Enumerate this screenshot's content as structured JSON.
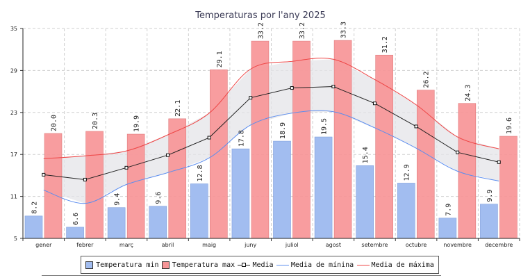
{
  "chart_data": {
    "type": "bar",
    "title": "Temperaturas por l'any 2025",
    "categories": [
      "gener",
      "febrer",
      "març",
      "abril",
      "maig",
      "juny",
      "juliol",
      "agost",
      "setembre",
      "octubre",
      "novembre",
      "decembre"
    ],
    "series": [
      {
        "name": "Temperatura min",
        "kind": "bar",
        "color": "#a2bdf0",
        "values": [
          8.2,
          6.6,
          9.4,
          9.6,
          12.8,
          17.8,
          18.9,
          19.5,
          15.4,
          12.9,
          7.9,
          9.9
        ]
      },
      {
        "name": "Temperatura max",
        "kind": "bar",
        "color": "#f79597",
        "values": [
          20.0,
          20.3,
          19.9,
          22.1,
          29.1,
          33.2,
          33.2,
          33.3,
          31.2,
          26.2,
          24.3,
          19.6
        ]
      },
      {
        "name": "Media",
        "kind": "line",
        "color": "#222222",
        "values": [
          14.1,
          13.4,
          15.1,
          16.9,
          19.4,
          25.1,
          26.5,
          26.7,
          24.3,
          21.0,
          17.3,
          15.9
        ]
      },
      {
        "name": "Media de mínina",
        "kind": "line",
        "color": "#5b8def",
        "values": [
          11.9,
          10.0,
          12.7,
          14.4,
          16.5,
          21.2,
          22.9,
          23.1,
          20.8,
          17.9,
          14.6,
          13.2
        ]
      },
      {
        "name": "Media de máxima",
        "kind": "line",
        "color": "#ee4444",
        "values": [
          16.4,
          16.8,
          17.5,
          19.8,
          22.9,
          29.2,
          30.3,
          30.6,
          27.7,
          24.1,
          19.5,
          17.8
        ]
      }
    ],
    "yticks": [
      "5",
      "11",
      "17",
      "23",
      "29",
      "35"
    ],
    "ylim": [
      5,
      35
    ],
    "grid": true,
    "legend_position": "bottom",
    "xlabel": "",
    "ylabel": ""
  }
}
